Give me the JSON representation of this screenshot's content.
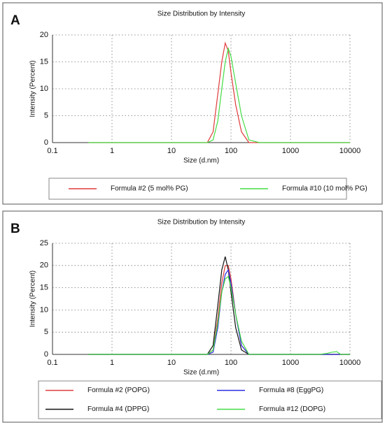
{
  "chart_data": [
    {
      "type": "line",
      "panel_label": "A",
      "title": "Size Distribution by Intensity",
      "x_label": "Size (d.nm)",
      "y_label": "Intensity (Percent)",
      "x_scale": "log",
      "grid": true,
      "legend": "bottom",
      "x": [
        0.4,
        1,
        10,
        30,
        40,
        50,
        60,
        70,
        80,
        90,
        100,
        120,
        150,
        200,
        300,
        1000,
        10000
      ],
      "series": [
        {
          "name": "Formula #2 (5 mol% PG)",
          "color": "#e03a3a",
          "values": [
            0,
            0,
            0,
            0,
            0,
            2,
            9,
            15,
            18.5,
            17,
            13,
            7,
            2,
            0,
            0,
            0,
            0
          ]
        },
        {
          "name": "Formula #10 (10 mol% PG)",
          "color": "#44dd44",
          "values": [
            0,
            0,
            0,
            0,
            0,
            0.5,
            4,
            10,
            15,
            17.5,
            16,
            11,
            5,
            0.5,
            0,
            0,
            0
          ]
        }
      ],
      "xlim": [
        0.1,
        10000
      ],
      "xticks": [
        0.1,
        1,
        10,
        100,
        1000,
        10000
      ],
      "ylim": [
        0,
        20
      ],
      "yticks": [
        0,
        5,
        10,
        15,
        20
      ]
    },
    {
      "type": "line",
      "panel_label": "B",
      "title": "Size Distribution by Intensity",
      "x_label": "Size (d.nm)",
      "y_label": "Intensity (Percent)",
      "x_scale": "log",
      "grid": true,
      "legend": "bottom",
      "x": [
        0.4,
        1,
        10,
        30,
        40,
        50,
        60,
        70,
        80,
        90,
        100,
        120,
        150,
        200,
        300,
        1000,
        3000,
        4000,
        5000,
        6000,
        7000,
        10000
      ],
      "series": [
        {
          "name": "Formula #2 (POPG)",
          "color": "#e03a3a",
          "values": [
            0,
            0,
            0,
            0,
            0,
            1,
            8,
            16,
            20,
            20,
            17,
            9,
            2,
            0,
            0,
            0,
            0,
            0,
            0,
            0,
            0,
            0
          ]
        },
        {
          "name": "Formula #4 (DPPG)",
          "color": "#111111",
          "values": [
            0,
            0,
            0,
            0,
            0,
            2,
            11,
            19,
            22,
            19,
            14,
            6,
            1,
            0,
            0,
            0,
            0,
            0,
            0,
            0,
            0,
            0
          ]
        },
        {
          "name": "Formula #8 (EggPG)",
          "color": "#2a2ae0",
          "values": [
            0,
            0,
            0,
            0,
            0,
            0.5,
            6,
            14,
            18,
            19,
            16,
            9,
            2,
            0,
            0,
            0,
            0,
            0,
            0,
            0,
            0,
            0
          ]
        },
        {
          "name": "Formula #12 (DOPG)",
          "color": "#44dd44",
          "values": [
            0,
            0,
            0,
            0,
            0,
            1,
            7,
            14,
            17,
            17.5,
            15,
            9,
            3,
            0,
            0,
            0,
            0,
            0.2,
            0.5,
            0.6,
            0,
            0
          ]
        }
      ],
      "xlim": [
        0.1,
        10000
      ],
      "xticks": [
        0.1,
        1,
        10,
        100,
        1000,
        10000
      ],
      "ylim": [
        0,
        25
      ],
      "yticks": [
        0,
        5,
        10,
        15,
        20,
        25
      ]
    }
  ]
}
